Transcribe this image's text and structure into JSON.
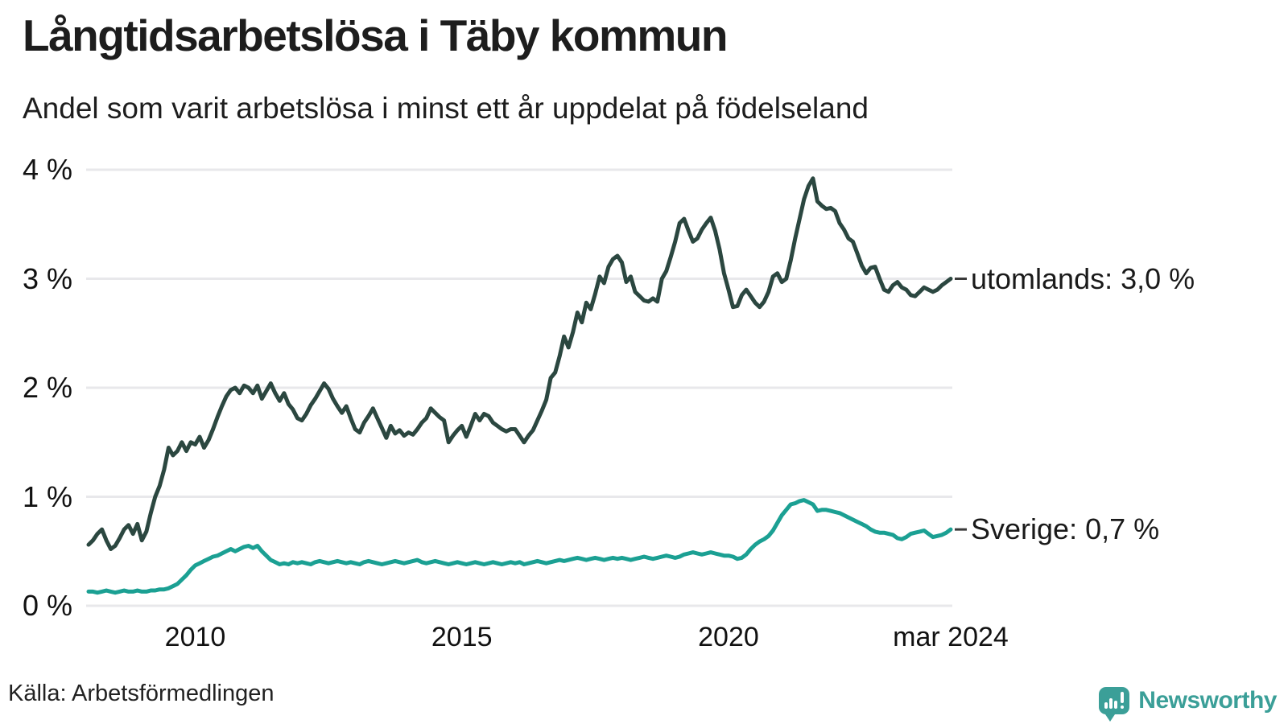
{
  "title": "Långtidsarbetslösa i Täby kommun",
  "subtitle": "Andel som varit arbetslösa i minst ett år uppdelat på födelseland",
  "source": "Källa: Arbetsförmedlingen",
  "branding": {
    "name": "Newsworthy",
    "color": "#3b9f98"
  },
  "chart_data": {
    "type": "line",
    "unit": "percent",
    "frequency": "monthly",
    "x_start": 2008.0,
    "x_end": 2024.1667,
    "ylim": [
      0,
      4.1
    ],
    "grid": true,
    "grid_color": "#e8e8eb",
    "tick_dash_color": "#3a3a3a",
    "x_ticks": [
      {
        "label": "2010",
        "t": 2010.0
      },
      {
        "label": "2015",
        "t": 2015.0
      },
      {
        "label": "2020",
        "t": 2020.0
      },
      {
        "label": "mar 2024",
        "t": 2024.1667
      }
    ],
    "y_ticks": [
      {
        "label": "0 %",
        "value": 0
      },
      {
        "label": "1 %",
        "value": 1
      },
      {
        "label": "2 %",
        "value": 2
      },
      {
        "label": "3 %",
        "value": 3
      },
      {
        "label": "4 %",
        "value": 4
      }
    ],
    "legend_position": "end-of-line-labels",
    "series": [
      {
        "name": "utomlands",
        "end_label": "utomlands: 3,0 %",
        "end_value_text": "3,0 %",
        "color": "#2b4740",
        "values": [
          0.56,
          0.6,
          0.66,
          0.7,
          0.6,
          0.52,
          0.55,
          0.62,
          0.7,
          0.74,
          0.66,
          0.75,
          0.6,
          0.68,
          0.85,
          1.0,
          1.1,
          1.25,
          1.45,
          1.38,
          1.42,
          1.5,
          1.42,
          1.5,
          1.48,
          1.55,
          1.45,
          1.52,
          1.62,
          1.73,
          1.83,
          1.92,
          1.98,
          2.0,
          1.95,
          2.02,
          2.0,
          1.95,
          2.02,
          1.9,
          1.97,
          2.04,
          1.95,
          1.88,
          1.95,
          1.85,
          1.8,
          1.72,
          1.7,
          1.76,
          1.84,
          1.9,
          1.97,
          2.04,
          1.99,
          1.9,
          1.83,
          1.77,
          1.83,
          1.72,
          1.62,
          1.59,
          1.68,
          1.74,
          1.81,
          1.72,
          1.63,
          1.54,
          1.65,
          1.58,
          1.61,
          1.56,
          1.59,
          1.57,
          1.62,
          1.68,
          1.72,
          1.81,
          1.77,
          1.73,
          1.7,
          1.5,
          1.56,
          1.61,
          1.65,
          1.55,
          1.65,
          1.76,
          1.7,
          1.76,
          1.74,
          1.68,
          1.65,
          1.62,
          1.6,
          1.62,
          1.62,
          1.56,
          1.5,
          1.56,
          1.61,
          1.7,
          1.79,
          1.89,
          2.09,
          2.14,
          2.29,
          2.47,
          2.37,
          2.51,
          2.69,
          2.6,
          2.78,
          2.72,
          2.86,
          3.02,
          2.96,
          3.11,
          3.18,
          3.21,
          3.15,
          2.97,
          3.02,
          2.88,
          2.84,
          2.8,
          2.79,
          2.82,
          2.79,
          3.0,
          3.07,
          3.2,
          3.34,
          3.51,
          3.55,
          3.44,
          3.34,
          3.37,
          3.45,
          3.51,
          3.56,
          3.44,
          3.27,
          3.05,
          2.9,
          2.74,
          2.75,
          2.85,
          2.9,
          2.84,
          2.78,
          2.74,
          2.79,
          2.88,
          3.02,
          3.05,
          2.97,
          3.0,
          3.17,
          3.37,
          3.55,
          3.73,
          3.85,
          3.92,
          3.71,
          3.67,
          3.64,
          3.65,
          3.62,
          3.51,
          3.45,
          3.37,
          3.34,
          3.23,
          3.12,
          3.05,
          3.1,
          3.11,
          3.0,
          2.9,
          2.88,
          2.94,
          2.97,
          2.92,
          2.9,
          2.85,
          2.84,
          2.88,
          2.92,
          2.9,
          2.88,
          2.9,
          2.94,
          2.97,
          3.0
        ]
      },
      {
        "name": "Sverige",
        "end_label": "Sverige: 0,7 %",
        "end_value_text": "0,7 %",
        "color": "#1ba093",
        "values": [
          0.13,
          0.13,
          0.12,
          0.13,
          0.14,
          0.13,
          0.12,
          0.13,
          0.14,
          0.13,
          0.13,
          0.14,
          0.13,
          0.13,
          0.14,
          0.14,
          0.15,
          0.15,
          0.16,
          0.18,
          0.2,
          0.24,
          0.28,
          0.33,
          0.37,
          0.39,
          0.41,
          0.43,
          0.45,
          0.46,
          0.48,
          0.5,
          0.52,
          0.5,
          0.52,
          0.54,
          0.55,
          0.53,
          0.55,
          0.5,
          0.46,
          0.42,
          0.4,
          0.38,
          0.39,
          0.38,
          0.4,
          0.39,
          0.4,
          0.39,
          0.38,
          0.4,
          0.41,
          0.4,
          0.39,
          0.4,
          0.41,
          0.4,
          0.39,
          0.4,
          0.39,
          0.38,
          0.4,
          0.41,
          0.4,
          0.39,
          0.38,
          0.39,
          0.4,
          0.41,
          0.4,
          0.39,
          0.4,
          0.41,
          0.42,
          0.4,
          0.39,
          0.4,
          0.41,
          0.4,
          0.39,
          0.38,
          0.39,
          0.4,
          0.39,
          0.38,
          0.39,
          0.4,
          0.39,
          0.38,
          0.39,
          0.4,
          0.39,
          0.38,
          0.39,
          0.4,
          0.39,
          0.4,
          0.38,
          0.39,
          0.4,
          0.41,
          0.4,
          0.39,
          0.4,
          0.41,
          0.42,
          0.41,
          0.42,
          0.43,
          0.44,
          0.43,
          0.42,
          0.43,
          0.44,
          0.43,
          0.42,
          0.43,
          0.44,
          0.43,
          0.44,
          0.43,
          0.42,
          0.43,
          0.44,
          0.45,
          0.44,
          0.43,
          0.44,
          0.45,
          0.46,
          0.45,
          0.44,
          0.45,
          0.47,
          0.48,
          0.49,
          0.48,
          0.47,
          0.48,
          0.49,
          0.48,
          0.47,
          0.46,
          0.46,
          0.45,
          0.43,
          0.44,
          0.47,
          0.52,
          0.56,
          0.59,
          0.61,
          0.64,
          0.69,
          0.76,
          0.83,
          0.88,
          0.93,
          0.94,
          0.96,
          0.97,
          0.95,
          0.93,
          0.87,
          0.88,
          0.88,
          0.87,
          0.86,
          0.85,
          0.83,
          0.81,
          0.79,
          0.77,
          0.75,
          0.73,
          0.7,
          0.68,
          0.67,
          0.67,
          0.66,
          0.65,
          0.62,
          0.61,
          0.63,
          0.66,
          0.67,
          0.68,
          0.69,
          0.66,
          0.63,
          0.64,
          0.65,
          0.67,
          0.7
        ]
      }
    ]
  }
}
